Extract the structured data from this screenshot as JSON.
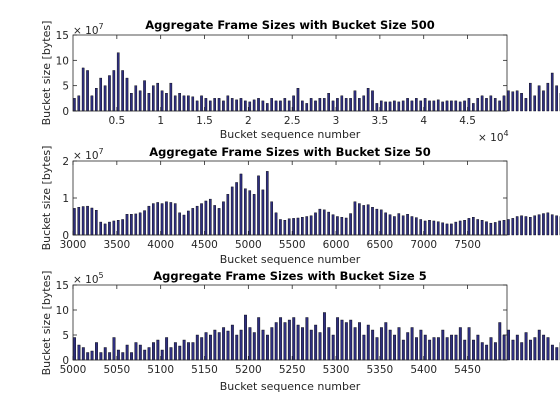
{
  "colors": {
    "bar_fill": "#2e2e80",
    "bar_edge": "#000000",
    "axis": "#262626"
  },
  "chart_data": [
    {
      "type": "bar",
      "title": "Aggregate Frame Sizes with Bucket Size 500",
      "xlabel": "Bucket sequence number",
      "ylabel": "Bucket size [bytes]",
      "x_start": 0,
      "x_step": 500,
      "xlim": [
        0,
        49500
      ],
      "ylim": [
        0,
        15
      ],
      "xticks": [
        5000,
        10000,
        15000,
        20000,
        25000,
        30000,
        35000,
        40000,
        45000
      ],
      "xtick_labels": [
        "0.5",
        "1",
        "1.5",
        "2",
        "2.5",
        "3",
        "3.5",
        "4",
        "4.5"
      ],
      "yticks": [
        0,
        5,
        10,
        15
      ],
      "ytick_labels": [
        "0",
        "5",
        "10",
        "15"
      ],
      "y_multiplier": {
        "base": "× 10",
        "exp": "7"
      },
      "x_multiplier": {
        "base": "× 10",
        "exp": "4"
      },
      "values": [
        2.5,
        3,
        8.5,
        8,
        3,
        4.5,
        6.5,
        5,
        7,
        8,
        11.5,
        8,
        6.5,
        3.5,
        5,
        4,
        6,
        3.5,
        5,
        5.5,
        4,
        3.5,
        5.5,
        3,
        3.5,
        3,
        3,
        2.8,
        2,
        3,
        2.5,
        2,
        2.5,
        2.5,
        2,
        3,
        2.5,
        2.2,
        2.5,
        2,
        1.8,
        2.2,
        2.5,
        2,
        1.5,
        2.5,
        2,
        2,
        2.5,
        2,
        3,
        4.5,
        2,
        1.5,
        2.5,
        2,
        2.5,
        2.5,
        3.5,
        2,
        2.5,
        3,
        2.5,
        2.5,
        4,
        2.5,
        3,
        4.5,
        4,
        1.5,
        2,
        1.8,
        1.8,
        2,
        1.8,
        2,
        2.5,
        2,
        2.5,
        2,
        2.5,
        2,
        2,
        2.2,
        1.8,
        2,
        2,
        2,
        1.8,
        2,
        2.5,
        1.5,
        2.5,
        3,
        2.5,
        3,
        2.5,
        2,
        3,
        4,
        3.8,
        4,
        3.5,
        2.5,
        5.5,
        3,
        5,
        4,
        5.5,
        7.5,
        5,
        3.5,
        4,
        3.5,
        3,
        2.5,
        2,
        2.5,
        1.8,
        2.5,
        2.2,
        2.5,
        2,
        1.5,
        2,
        2.5,
        3,
        3.5,
        4,
        3.5,
        3,
        2.5,
        3,
        2.5,
        3,
        2,
        3,
        2.5,
        3,
        2,
        1.5,
        2.5,
        3,
        2,
        1.5,
        2,
        1.5,
        2,
        2.5,
        3,
        2,
        2.5,
        2,
        3,
        2.5,
        2
      ]
    },
    {
      "type": "bar",
      "title": "Aggregate Frame Sizes with Bucket Size 50",
      "xlabel": "Bucket sequence number",
      "ylabel": "Bucket size [bytes]",
      "x_start": 3000,
      "x_step": 50,
      "xlim": [
        3000,
        7950
      ],
      "ylim": [
        0,
        2
      ],
      "xticks": [
        3000,
        3500,
        4000,
        4500,
        5000,
        5500,
        6000,
        6500,
        7000,
        7500
      ],
      "xtick_labels": [
        "3000",
        "3500",
        "4000",
        "4500",
        "5000",
        "5500",
        "6000",
        "6500",
        "7000",
        "7500"
      ],
      "yticks": [
        0,
        1,
        2
      ],
      "ytick_labels": [
        "0",
        "1",
        "2"
      ],
      "y_multiplier": {
        "base": "× 10",
        "exp": "7"
      },
      "values": [
        0.72,
        0.75,
        0.77,
        0.78,
        0.73,
        0.67,
        0.35,
        0.3,
        0.35,
        0.38,
        0.4,
        0.42,
        0.56,
        0.56,
        0.57,
        0.6,
        0.66,
        0.78,
        0.85,
        0.88,
        0.85,
        0.9,
        0.88,
        0.85,
        0.6,
        0.54,
        0.65,
        0.72,
        0.78,
        0.85,
        0.92,
        0.97,
        0.8,
        0.72,
        0.9,
        1.1,
        1.3,
        1.42,
        1.65,
        1.25,
        1.2,
        1.1,
        1.6,
        1.22,
        1.72,
        0.9,
        0.6,
        0.42,
        0.4,
        0.44,
        0.45,
        0.46,
        0.48,
        0.5,
        0.52,
        0.6,
        0.7,
        0.68,
        0.62,
        0.55,
        0.5,
        0.48,
        0.46,
        0.58,
        0.9,
        0.85,
        0.8,
        0.82,
        0.75,
        0.7,
        0.68,
        0.6,
        0.55,
        0.5,
        0.58,
        0.52,
        0.56,
        0.5,
        0.47,
        0.42,
        0.38,
        0.4,
        0.38,
        0.36,
        0.33,
        0.3,
        0.3,
        0.35,
        0.38,
        0.4,
        0.45,
        0.48,
        0.42,
        0.4,
        0.36,
        0.32,
        0.34,
        0.38,
        0.4,
        0.42,
        0.45,
        0.5,
        0.52,
        0.5,
        0.48,
        0.52,
        0.55,
        0.58,
        0.6,
        0.55,
        0.52,
        0.5,
        0.48,
        0.62,
        0.7,
        0.75,
        0.66,
        0.56,
        0.52,
        0.48,
        0.45,
        0.42,
        0.4,
        0.38,
        0.35,
        0.4,
        0.42,
        0.45,
        0.48,
        0.5,
        0.47,
        0.42,
        0.38,
        0.35,
        0.3,
        0.25,
        0.2,
        0.3,
        0.4,
        0.28,
        0.35,
        0.5,
        0.3,
        0.62,
        0.55,
        0.18,
        0.12,
        0.22,
        0.28,
        0.3,
        0.32,
        0.42,
        0.38,
        0.3,
        0.35,
        0.4
      ]
    },
    {
      "type": "bar",
      "title": "Aggregate Frame Sizes with Bucket Size 5",
      "xlabel": "Bucket sequence number",
      "ylabel": "Bucket size [bytes]",
      "x_start": 5000,
      "x_step": 5,
      "xlim": [
        5000,
        5495
      ],
      "ylim": [
        0,
        15
      ],
      "xticks": [
        5000,
        5050,
        5100,
        5150,
        5200,
        5250,
        5300,
        5350,
        5400,
        5450
      ],
      "xtick_labels": [
        "5000",
        "5050",
        "5100",
        "5150",
        "5200",
        "5250",
        "5300",
        "5350",
        "5400",
        "5450"
      ],
      "yticks": [
        0,
        5,
        10,
        15
      ],
      "ytick_labels": [
        "0",
        "5",
        "10",
        "15"
      ],
      "y_multiplier": {
        "base": "× 10",
        "exp": "5"
      },
      "values": [
        4.5,
        3,
        2.5,
        1.5,
        1.8,
        3.5,
        1.5,
        2.5,
        1.5,
        4.5,
        2,
        1.5,
        3,
        1.5,
        3.5,
        3,
        2,
        2.5,
        3.5,
        4,
        2,
        4.5,
        2.5,
        3.5,
        2.8,
        4,
        3.5,
        3.5,
        5,
        4.5,
        5.5,
        5,
        6,
        5.5,
        6.5,
        5.8,
        7,
        5,
        6,
        9,
        6.5,
        5.5,
        8.5,
        6,
        5,
        6.5,
        7.5,
        8.5,
        7.5,
        8,
        8.5,
        7,
        6.5,
        8.5,
        6,
        7,
        5.5,
        9.5,
        6.5,
        5,
        8.5,
        8,
        7.5,
        8,
        6.5,
        7.5,
        5,
        7,
        6,
        4.5,
        6.5,
        7.5,
        6,
        5,
        6.5,
        4,
        5.5,
        6.5,
        4.5,
        6,
        5,
        4,
        4.5,
        4.5,
        6,
        4.5,
        5,
        5,
        6.5,
        4,
        6.5,
        4,
        5,
        3.5,
        3,
        4.5,
        3.5,
        7.5,
        5,
        6,
        4,
        5,
        3.5,
        5.5,
        4,
        4.5,
        6,
        5,
        4.5,
        3,
        2.5,
        3.5,
        3.5,
        1.5,
        3,
        4,
        3,
        6,
        3,
        4.5,
        5.5,
        5,
        4.5,
        5,
        3,
        5,
        4,
        4,
        5.5,
        3.5,
        3,
        3,
        2.5,
        4,
        3.5,
        1.5,
        1.5,
        10.5,
        6.5,
        6
      ]
    }
  ]
}
